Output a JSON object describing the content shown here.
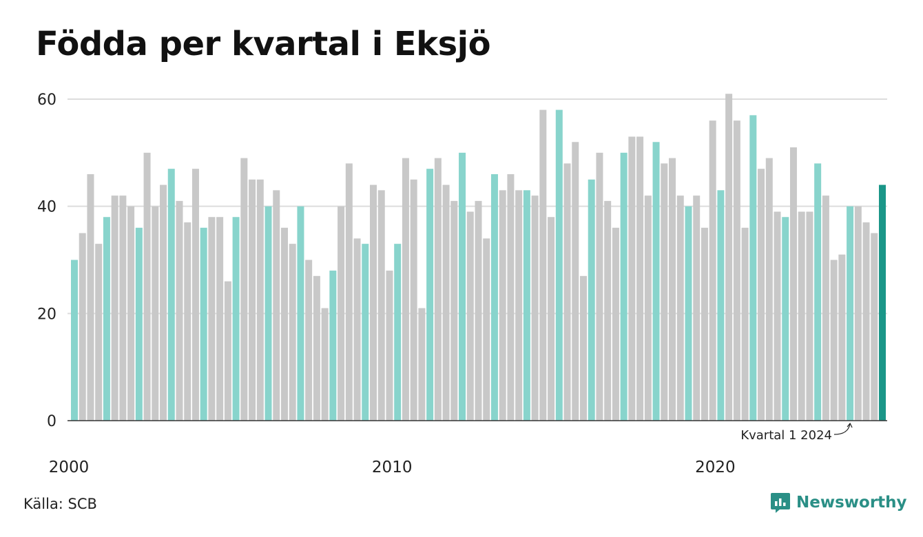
{
  "title": "Födda per kvartal i Eksjö",
  "source": "Källa: SCB",
  "brand": {
    "name": "Newsworthy",
    "icon": "newsworthy-logo-icon"
  },
  "colors": {
    "q1": "#88d4cc",
    "other": "#c8c8c8",
    "latest": "#1a9688",
    "grid": "#dddddd",
    "axis": "#333333",
    "brand": "#2a8f86"
  },
  "chart_data": {
    "type": "bar",
    "title": "Födda per kvartal i Eksjö",
    "xlabel": "",
    "ylabel": "",
    "ylim": [
      0,
      60
    ],
    "yticks": [
      "0",
      "20",
      "40",
      "60"
    ],
    "xticks": [
      {
        "label": "2000",
        "year": 2000
      },
      {
        "label": "2010",
        "year": 2010
      },
      {
        "label": "2020",
        "year": 2020
      }
    ],
    "start": "2000 Q1",
    "grid": true,
    "annotation": {
      "text": "Kvartal 1 2024",
      "target": "2024 Q1"
    },
    "values": [
      30,
      35,
      46,
      33,
      38,
      42,
      42,
      40,
      36,
      50,
      40,
      44,
      47,
      41,
      37,
      47,
      36,
      38,
      38,
      26,
      38,
      49,
      45,
      45,
      40,
      43,
      36,
      33,
      40,
      30,
      27,
      21,
      28,
      40,
      48,
      34,
      33,
      44,
      43,
      28,
      33,
      49,
      45,
      21,
      47,
      49,
      44,
      41,
      50,
      39,
      41,
      34,
      46,
      43,
      46,
      43,
      43,
      42,
      58,
      38,
      58,
      48,
      52,
      27,
      45,
      50,
      41,
      36,
      50,
      53,
      53,
      42,
      52,
      48,
      49,
      42,
      40,
      42,
      36,
      56,
      43,
      61,
      56,
      36,
      57,
      47,
      49,
      39,
      38,
      51,
      39,
      39,
      48,
      42,
      30,
      31,
      40,
      40,
      37,
      35,
      44
    ]
  }
}
